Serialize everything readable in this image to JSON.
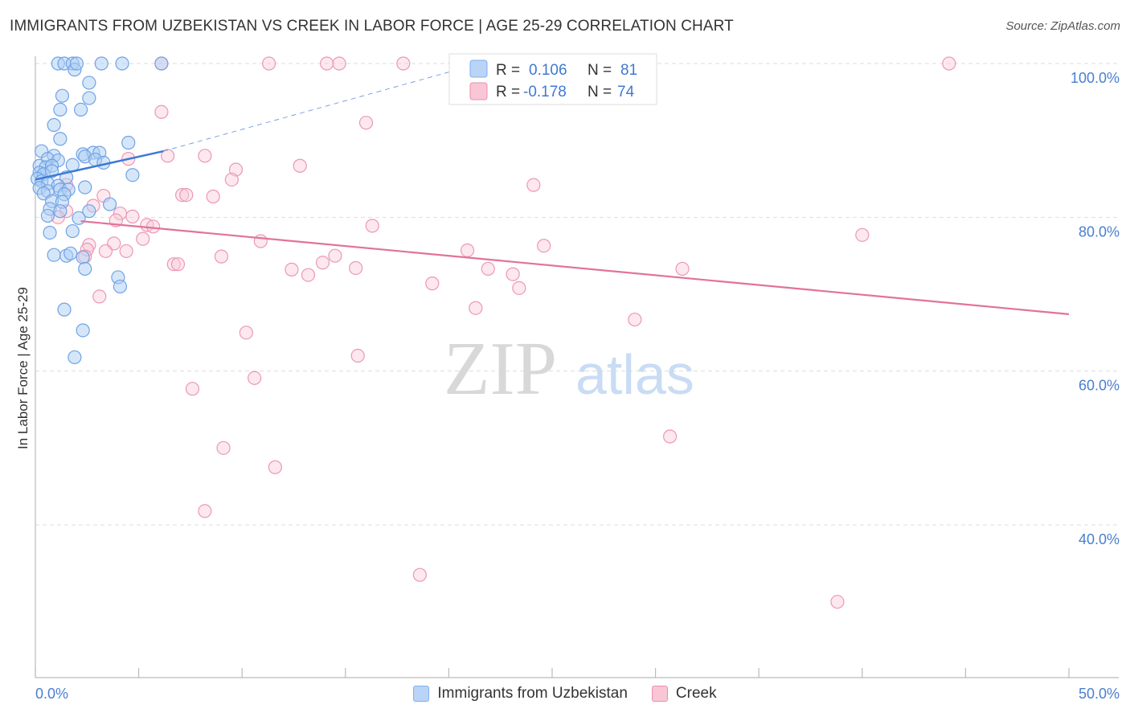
{
  "header": {
    "title": "IMMIGRANTS FROM UZBEKISTAN VS CREEK IN LABOR FORCE | AGE 25-29 CORRELATION CHART",
    "source": "Source: ZipAtlas.com"
  },
  "watermark": {
    "zip": "ZIP",
    "atlas": "atlas"
  },
  "legend": {
    "r_label": "R =",
    "n_label": "N =",
    "rows": [
      {
        "series": "Immigrants from Uzbekistan",
        "r": "0.106",
        "n": "81",
        "color": "#7fb0ee",
        "fill": "#b9d4f7"
      },
      {
        "series": "Creek",
        "r": "-0.178",
        "n": "74",
        "color": "#eb8fac",
        "fill": "#f9c6d6"
      }
    ]
  },
  "colors": {
    "blue_stroke": "#6fa3e6",
    "blue_fill": "#aecdf3",
    "blue_line": "#3d7ad6",
    "pink_stroke": "#ec98b3",
    "pink_fill": "#f8cbd9",
    "pink_line": "#e2729b",
    "grid": "#dddddd",
    "axis_label": "#4a7fd0"
  },
  "chart_data": {
    "type": "scatter",
    "title": "IMMIGRANTS FROM UZBEKISTAN VS CREEK IN LABOR FORCE | AGE 25-29 CORRELATION CHART",
    "xlabel": "",
    "ylabel": "In Labor Force | Age 25-29",
    "xlim": [
      0,
      50
    ],
    "ylim": [
      23,
      102
    ],
    "x_tick_labels": [
      "0.0%",
      "50.0%"
    ],
    "y_ticks": [
      40,
      60,
      80,
      100
    ],
    "y_tick_labels": [
      "40.0%",
      "60.0%",
      "80.0%",
      "100.0%"
    ],
    "grid": true,
    "series": [
      {
        "name": "Immigrants from Uzbekistan",
        "r": 0.106,
        "n": 81,
        "trend": {
          "x": [
            0,
            6.2
          ],
          "y": [
            84.9,
            88.6
          ],
          "dashed_to": [
            21.5,
            100
          ]
        },
        "points": [
          [
            1.1,
            100
          ],
          [
            1.4,
            100
          ],
          [
            1.8,
            100
          ],
          [
            1.9,
            99.2
          ],
          [
            2.0,
            100
          ],
          [
            3.2,
            100
          ],
          [
            4.2,
            100
          ],
          [
            6.1,
            100
          ],
          [
            2.6,
            97.5
          ],
          [
            1.3,
            95.8
          ],
          [
            2.6,
            95.5
          ],
          [
            1.2,
            94.0
          ],
          [
            2.2,
            94.0
          ],
          [
            0.9,
            92.0
          ],
          [
            1.2,
            90.2
          ],
          [
            4.5,
            89.7
          ],
          [
            0.3,
            88.6
          ],
          [
            0.9,
            88.0
          ],
          [
            2.3,
            88.2
          ],
          [
            2.8,
            88.4
          ],
          [
            3.1,
            88.4
          ],
          [
            0.6,
            87.6
          ],
          [
            1.1,
            87.4
          ],
          [
            2.4,
            87.9
          ],
          [
            2.9,
            87.5
          ],
          [
            3.3,
            87.1
          ],
          [
            0.2,
            86.7
          ],
          [
            0.5,
            86.5
          ],
          [
            0.8,
            86.7
          ],
          [
            1.8,
            86.8
          ],
          [
            0.2,
            85.8
          ],
          [
            0.4,
            85.6
          ],
          [
            0.8,
            86.0
          ],
          [
            1.5,
            85.2
          ],
          [
            4.7,
            85.5
          ],
          [
            0.1,
            85.0
          ],
          [
            0.3,
            84.7
          ],
          [
            0.6,
            84.4
          ],
          [
            1.1,
            84.1
          ],
          [
            0.2,
            83.8
          ],
          [
            0.6,
            83.4
          ],
          [
            1.2,
            83.6
          ],
          [
            1.6,
            83.6
          ],
          [
            2.4,
            83.9
          ],
          [
            0.4,
            83.1
          ],
          [
            1.4,
            83.0
          ],
          [
            0.8,
            82.1
          ],
          [
            1.3,
            82.0
          ],
          [
            3.6,
            81.7
          ],
          [
            0.7,
            81.1
          ],
          [
            1.2,
            80.8
          ],
          [
            2.6,
            80.8
          ],
          [
            0.6,
            80.2
          ],
          [
            2.1,
            79.9
          ],
          [
            0.7,
            78.0
          ],
          [
            1.8,
            78.2
          ],
          [
            0.9,
            75.1
          ],
          [
            1.5,
            75.0
          ],
          [
            1.7,
            75.3
          ],
          [
            2.3,
            74.8
          ],
          [
            2.4,
            73.3
          ],
          [
            4.0,
            72.2
          ],
          [
            4.1,
            71.0
          ],
          [
            1.4,
            68.0
          ],
          [
            2.3,
            65.3
          ],
          [
            1.9,
            61.8
          ]
        ]
      },
      {
        "name": "Creek",
        "r": -0.178,
        "n": 74,
        "trend": {
          "x": [
            2.2,
            50
          ],
          "y": [
            79.5,
            67.4
          ]
        },
        "points": [
          [
            6.1,
            100
          ],
          [
            11.3,
            100
          ],
          [
            14.1,
            100
          ],
          [
            14.7,
            100
          ],
          [
            17.8,
            100
          ],
          [
            44.2,
            100
          ],
          [
            6.1,
            93.7
          ],
          [
            16.0,
            92.3
          ],
          [
            6.4,
            88.0
          ],
          [
            8.2,
            88.0
          ],
          [
            4.5,
            87.6
          ],
          [
            12.8,
            86.7
          ],
          [
            9.7,
            86.2
          ],
          [
            9.5,
            84.9
          ],
          [
            24.1,
            84.2
          ],
          [
            1.5,
            84.2
          ],
          [
            7.1,
            82.9
          ],
          [
            7.3,
            82.9
          ],
          [
            8.6,
            82.7
          ],
          [
            3.3,
            82.8
          ],
          [
            2.8,
            81.5
          ],
          [
            1.5,
            80.8
          ],
          [
            4.1,
            80.5
          ],
          [
            4.7,
            80.1
          ],
          [
            1.1,
            80.0
          ],
          [
            3.9,
            79.6
          ],
          [
            5.4,
            79.0
          ],
          [
            5.7,
            78.8
          ],
          [
            16.3,
            78.9
          ],
          [
            40.0,
            77.7
          ],
          [
            5.2,
            77.2
          ],
          [
            10.9,
            76.9
          ],
          [
            2.6,
            76.4
          ],
          [
            3.8,
            76.6
          ],
          [
            2.5,
            75.8
          ],
          [
            3.4,
            75.6
          ],
          [
            4.4,
            75.6
          ],
          [
            24.6,
            76.3
          ],
          [
            20.9,
            75.7
          ],
          [
            2.4,
            74.9
          ],
          [
            9.0,
            74.9
          ],
          [
            14.5,
            75.0
          ],
          [
            13.9,
            74.1
          ],
          [
            6.7,
            73.9
          ],
          [
            6.9,
            73.9
          ],
          [
            12.4,
            73.2
          ],
          [
            15.5,
            73.4
          ],
          [
            21.9,
            73.3
          ],
          [
            31.3,
            73.3
          ],
          [
            23.1,
            72.6
          ],
          [
            13.2,
            72.5
          ],
          [
            19.2,
            71.4
          ],
          [
            23.4,
            70.8
          ],
          [
            3.1,
            69.7
          ],
          [
            21.3,
            68.2
          ],
          [
            29.0,
            66.7
          ],
          [
            10.2,
            65.0
          ],
          [
            15.6,
            62.0
          ],
          [
            10.6,
            59.1
          ],
          [
            7.6,
            57.7
          ],
          [
            30.7,
            51.5
          ],
          [
            9.1,
            50.0
          ],
          [
            11.6,
            47.5
          ],
          [
            8.2,
            41.8
          ],
          [
            18.6,
            33.5
          ],
          [
            38.8,
            30.0
          ]
        ]
      }
    ]
  }
}
